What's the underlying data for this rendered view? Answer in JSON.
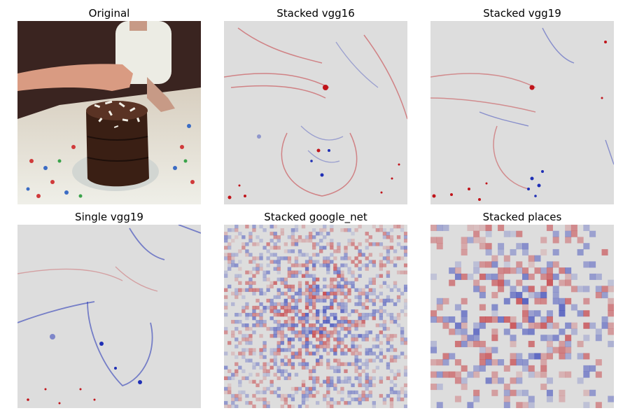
{
  "panels": [
    {
      "title": "Original",
      "kind": "photo"
    },
    {
      "title": "Stacked vgg16",
      "kind": "saliency-fine"
    },
    {
      "title": "Stacked vgg19",
      "kind": "saliency-fine"
    },
    {
      "title": "Single vgg19",
      "kind": "saliency-fine-blue"
    },
    {
      "title": "Stacked google_net",
      "kind": "saliency-noisy"
    },
    {
      "title": "Stacked places",
      "kind": "saliency-blocky"
    }
  ],
  "colors": {
    "background_gray": "#dddddd",
    "positive_red": "#c0141a",
    "negative_blue": "#1f2fb5",
    "table_cloth": "#f2f0ea",
    "cake": "#3a1f14",
    "dark_bg": "#3a2420"
  }
}
